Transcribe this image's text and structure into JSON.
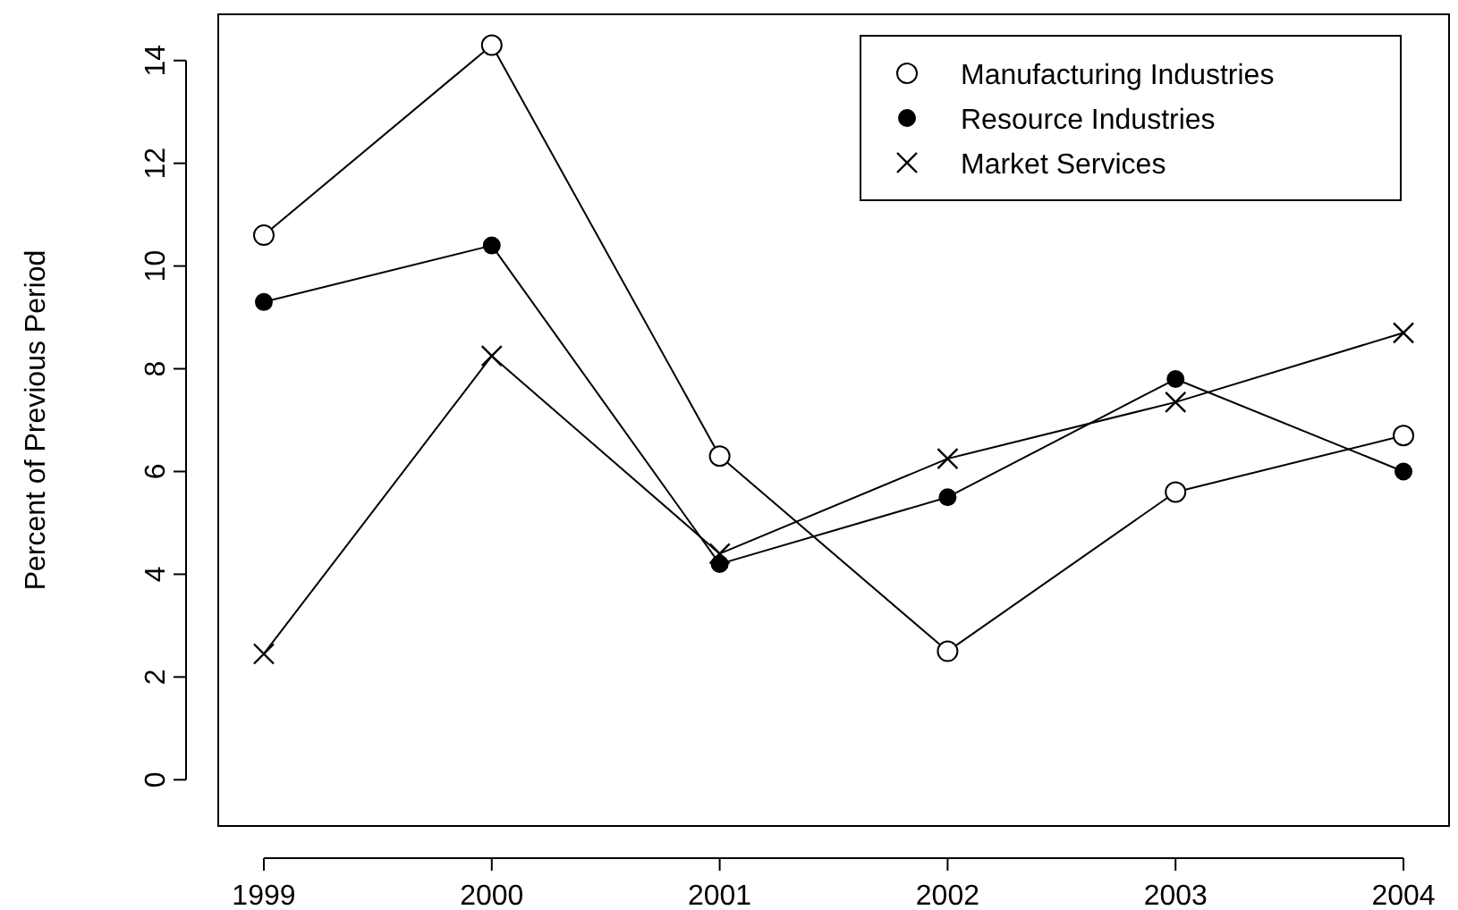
{
  "chart_data": {
    "type": "line",
    "ylabel": "Percent of Previous Period",
    "x": [
      1999,
      2000,
      2001,
      2002,
      2003,
      2004
    ],
    "xlim": [
      1998.8,
      2004.2
    ],
    "xticks": [
      1999,
      2000,
      2001,
      2002,
      2003,
      2004
    ],
    "ylim": [
      -0.9,
      14.9
    ],
    "yticks": [
      0,
      2,
      4,
      6,
      8,
      10,
      12,
      14
    ],
    "series": [
      {
        "name": "Manufacturing Industries",
        "color": "#000000",
        "marker": "circle-open",
        "values": [
          10.6,
          14.3,
          6.3,
          2.5,
          5.6,
          6.7
        ]
      },
      {
        "name": "Resource Industries",
        "color": "#000000",
        "marker": "circle",
        "values": [
          9.3,
          10.4,
          4.2,
          5.5,
          7.8,
          6.0
        ]
      },
      {
        "name": "Market Services",
        "color": "#000000",
        "marker": "cross",
        "values": [
          2.45,
          8.25,
          4.4,
          6.25,
          7.35,
          8.7
        ]
      }
    ],
    "legend": "top right",
    "grid": false,
    "line_style": "solid"
  }
}
